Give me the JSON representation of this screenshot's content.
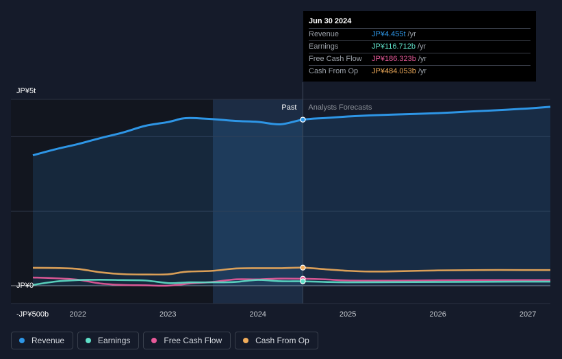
{
  "tooltip": {
    "date": "Jun 30 2024",
    "rows": [
      {
        "label": "Revenue",
        "value": "JP¥4.455t",
        "unit": "/yr",
        "color": "#2e96e6"
      },
      {
        "label": "Earnings",
        "value": "JP¥116.712b",
        "unit": "/yr",
        "color": "#5fe0c8"
      },
      {
        "label": "Free Cash Flow",
        "value": "JP¥186.323b",
        "unit": "/yr",
        "color": "#e85a9a"
      },
      {
        "label": "Cash From Op",
        "value": "JP¥484.053b",
        "unit": "/yr",
        "color": "#f0ac5a"
      }
    ]
  },
  "legend": [
    {
      "label": "Revenue",
      "color": "#2e96e6"
    },
    {
      "label": "Earnings",
      "color": "#5fe0c8"
    },
    {
      "label": "Free Cash Flow",
      "color": "#e85a9a"
    },
    {
      "label": "Cash From Op",
      "color": "#f0ac5a"
    }
  ],
  "chart_data": {
    "type": "area",
    "past_label": "Past",
    "forecast_label": "Analysts Forecasts",
    "y_tick_labels": [
      {
        "label": "JP¥5t",
        "value": 5000
      },
      {
        "label": "JP¥0",
        "value": 0
      },
      {
        "label": "-JP¥500b",
        "value": -500
      }
    ],
    "ylim": [
      -500,
      5000
    ],
    "xlim": [
      2021.5,
      2027.25
    ],
    "x_tick_labels": [
      "2022",
      "2023",
      "2024",
      "2025",
      "2026",
      "2027"
    ],
    "x_ticks": [
      2022,
      2023,
      2024,
      2025,
      2026,
      2027
    ],
    "past_start": 2023.5,
    "divider_x": 2024.5,
    "grid": true,
    "legend_position": "bottom",
    "colors": {
      "background": "#151b2a",
      "past_band": "#1c2c44",
      "revenue": "#2e96e6",
      "earnings": "#5fe0c8",
      "fcf": "#e85a9a",
      "cfo": "#f0ac5a"
    },
    "series": [
      {
        "name": "Revenue",
        "key": "revenue",
        "area": true,
        "x": [
          2021.5,
          2021.75,
          2022.0,
          2022.25,
          2022.5,
          2022.75,
          2023.0,
          2023.15,
          2023.25,
          2023.5,
          2023.75,
          2024.0,
          2024.25,
          2024.5,
          2024.75,
          2025.0,
          2025.25,
          2025.5,
          2025.75,
          2026.0,
          2026.25,
          2026.5,
          2026.75,
          2027.0,
          2027.25
        ],
        "y": [
          3500,
          3660,
          3800,
          3960,
          4110,
          4290,
          4390,
          4480,
          4500,
          4470,
          4420,
          4395,
          4330,
          4455,
          4500,
          4540,
          4570,
          4590,
          4610,
          4630,
          4660,
          4690,
          4720,
          4755,
          4800
        ]
      },
      {
        "name": "Cash From Op",
        "key": "cfo",
        "area": false,
        "x": [
          2021.5,
          2021.75,
          2022.0,
          2022.25,
          2022.5,
          2022.75,
          2023.0,
          2023.15,
          2023.25,
          2023.5,
          2023.75,
          2024.0,
          2024.25,
          2024.5,
          2024.75,
          2025.0,
          2025.25,
          2025.5,
          2026.0,
          2026.5,
          2027.0,
          2027.25
        ],
        "y": [
          480,
          475,
          450,
          360,
          310,
          300,
          305,
          360,
          380,
          400,
          460,
          470,
          470,
          484,
          440,
          400,
          380,
          385,
          410,
          420,
          420,
          420
        ]
      },
      {
        "name": "Free Cash Flow",
        "key": "fcf",
        "area": false,
        "x": [
          2021.5,
          2021.75,
          2022.0,
          2022.25,
          2022.5,
          2022.75,
          2023.0,
          2023.25,
          2023.5,
          2023.75,
          2024.0,
          2024.25,
          2024.5,
          2024.75,
          2025.0,
          2025.5,
          2026.0,
          2026.5,
          2027.0,
          2027.25
        ],
        "y": [
          220,
          200,
          160,
          60,
          20,
          10,
          0,
          60,
          100,
          170,
          170,
          190,
          186,
          170,
          140,
          135,
          145,
          150,
          150,
          150
        ]
      },
      {
        "name": "Earnings",
        "key": "earnings",
        "area": false,
        "x": [
          2021.5,
          2021.75,
          2022.0,
          2022.25,
          2022.5,
          2022.75,
          2023.0,
          2023.15,
          2023.25,
          2023.5,
          2023.75,
          2024.0,
          2024.25,
          2024.5,
          2024.75,
          2025.0,
          2025.5,
          2026.0,
          2026.5,
          2027.0,
          2027.25
        ],
        "y": [
          20,
          110,
          150,
          160,
          150,
          140,
          70,
          80,
          90,
          90,
          100,
          155,
          120,
          117,
          100,
          90,
          95,
          100,
          105,
          110,
          110
        ]
      }
    ]
  }
}
